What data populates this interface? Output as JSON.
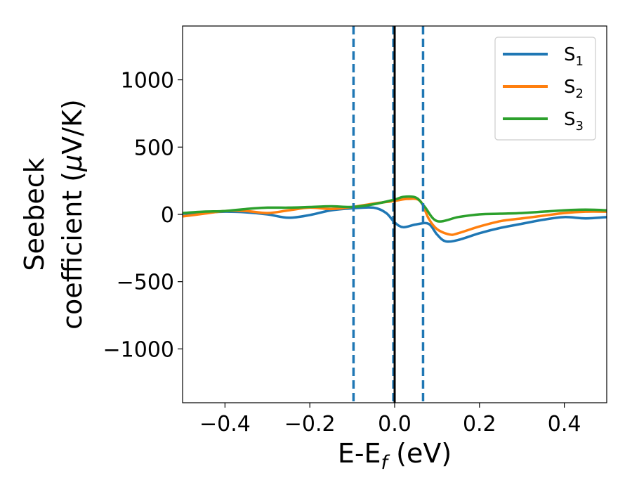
{
  "chart_data": {
    "type": "line",
    "title": "",
    "xlabel": "E-E_f (eV)",
    "xlabel_main": "E-E",
    "xlabel_sub": "f",
    "xlabel_tail": " (eV)",
    "ylabel": "Seebeck coefficient (μV/K)",
    "ylabel_line1": "Seebeck",
    "ylabel_line2_prefix": "coefficient  (",
    "ylabel_mu": "μ",
    "ylabel_line2_suffix": "V/K)",
    "xlim": [
      -0.5,
      0.5
    ],
    "ylim": [
      -1400,
      1400
    ],
    "xticks": [
      -0.4,
      -0.2,
      0.0,
      0.2,
      0.4
    ],
    "xtick_labels": [
      "−0.4",
      "−0.2",
      "0.0",
      "0.2",
      "0.4"
    ],
    "yticks": [
      1000,
      500,
      0,
      -500,
      -1000
    ],
    "ytick_labels": [
      "1000",
      "500",
      "0",
      "−500",
      "−1000"
    ],
    "grid": false,
    "legend_position": "top-right",
    "vlines": [
      {
        "x": -0.097,
        "style": "dashed",
        "color": "#1f77b4"
      },
      {
        "x": -0.003,
        "style": "dashed",
        "color": "#1f77b4"
      },
      {
        "x": 0.0,
        "style": "solid",
        "color": "#000000"
      },
      {
        "x": 0.067,
        "style": "dashed",
        "color": "#1f77b4"
      }
    ],
    "series": [
      {
        "name": "S1",
        "legend_main": "S",
        "legend_sub": "1",
        "color": "#1f77b4",
        "x": [
          -0.5,
          -0.45,
          -0.4,
          -0.35,
          -0.3,
          -0.25,
          -0.2,
          -0.15,
          -0.1,
          -0.05,
          -0.02,
          0.0,
          0.02,
          0.05,
          0.08,
          0.1,
          0.12,
          0.15,
          0.2,
          0.25,
          0.3,
          0.35,
          0.4,
          0.45,
          0.5
        ],
        "y": [
          5,
          12,
          20,
          15,
          0,
          -25,
          -5,
          30,
          45,
          50,
          10,
          -60,
          -95,
          -75,
          -70,
          -150,
          -200,
          -190,
          -140,
          -100,
          -70,
          -40,
          -20,
          -30,
          -20
        ]
      },
      {
        "name": "S2",
        "legend_main": "S",
        "legend_sub": "2",
        "color": "#ff7f0e",
        "x": [
          -0.5,
          -0.45,
          -0.4,
          -0.35,
          -0.3,
          -0.25,
          -0.2,
          -0.15,
          -0.1,
          -0.05,
          0.0,
          0.03,
          0.06,
          0.08,
          0.1,
          0.13,
          0.15,
          0.2,
          0.25,
          0.3,
          0.35,
          0.4,
          0.45,
          0.5
        ],
        "y": [
          -15,
          5,
          25,
          25,
          10,
          30,
          50,
          40,
          55,
          80,
          100,
          115,
          100,
          -30,
          -110,
          -150,
          -140,
          -90,
          -50,
          -30,
          -10,
          10,
          20,
          20
        ]
      },
      {
        "name": "S3",
        "legend_main": "S",
        "legend_sub": "3",
        "color": "#2ca02c",
        "x": [
          -0.5,
          -0.45,
          -0.4,
          -0.35,
          -0.3,
          -0.25,
          -0.2,
          -0.15,
          -0.1,
          -0.05,
          0.0,
          0.02,
          0.05,
          0.07,
          0.1,
          0.15,
          0.2,
          0.25,
          0.3,
          0.35,
          0.4,
          0.45,
          0.5
        ],
        "y": [
          10,
          20,
          25,
          40,
          50,
          50,
          55,
          60,
          55,
          75,
          110,
          130,
          125,
          60,
          -50,
          -20,
          0,
          5,
          10,
          20,
          30,
          35,
          30
        ]
      }
    ]
  }
}
